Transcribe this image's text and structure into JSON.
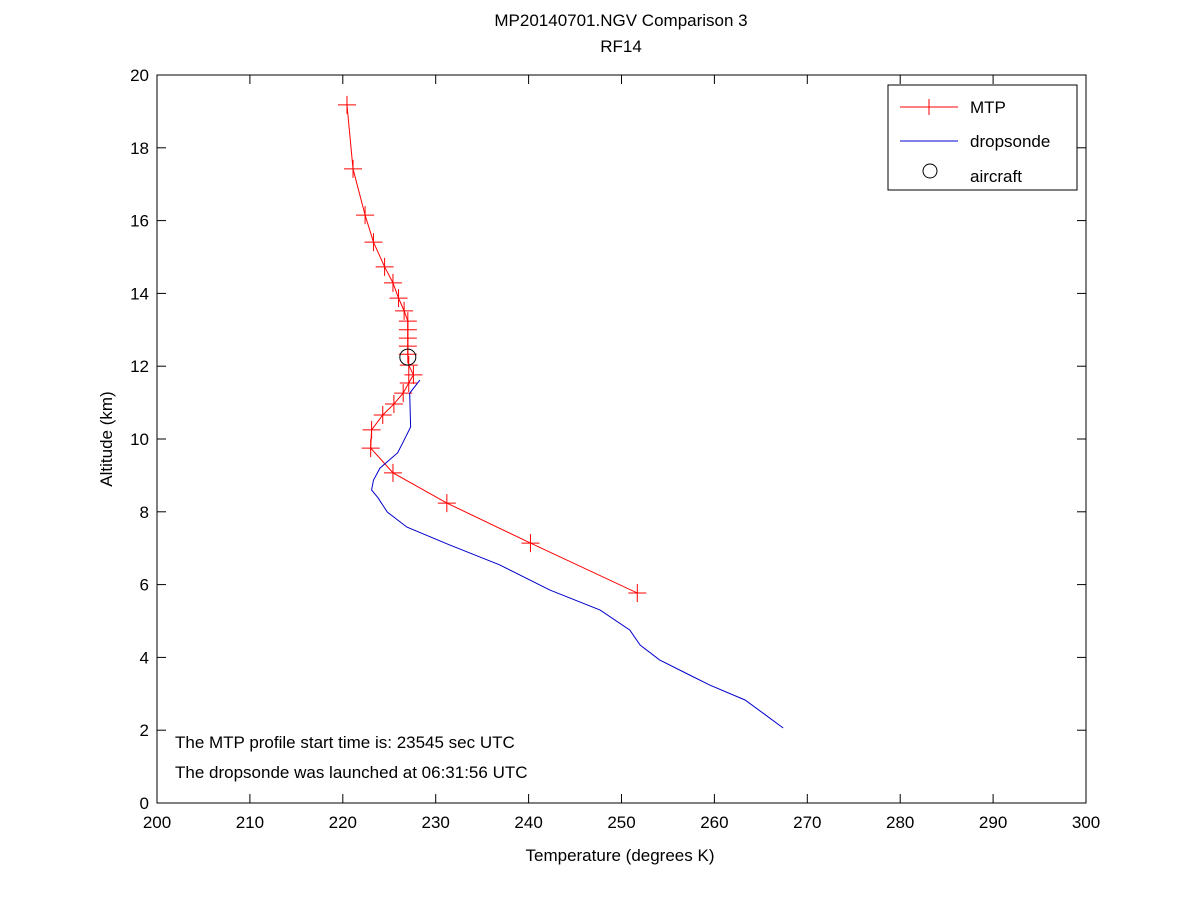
{
  "chart_data": {
    "type": "line",
    "title": "MP20140701.NGV Comparison 3",
    "subtitle": "RF14",
    "xlabel": "Temperature (degrees K)",
    "ylabel": "Altitude (km)",
    "xlim": [
      200,
      300
    ],
    "ylim": [
      0,
      20
    ],
    "xticks": [
      "200",
      "210",
      "220",
      "230",
      "240",
      "250",
      "260",
      "270",
      "280",
      "290",
      "300"
    ],
    "yticks": [
      "0",
      "2",
      "4",
      "6",
      "8",
      "10",
      "12",
      "14",
      "16",
      "18",
      "20"
    ],
    "grid": false,
    "legend_position": "top-right",
    "series": [
      {
        "name": "MTP",
        "color": "#ff0000",
        "marker": "+",
        "points": [
          [
            220.45,
            19.18
          ],
          [
            221.1,
            17.42
          ],
          [
            222.4,
            16.15
          ],
          [
            223.3,
            15.41
          ],
          [
            224.5,
            14.73
          ],
          [
            225.4,
            14.29
          ],
          [
            226.0,
            13.87
          ],
          [
            226.6,
            13.52
          ],
          [
            227.0,
            13.24
          ],
          [
            227.0,
            13.0
          ],
          [
            227.0,
            12.77
          ],
          [
            227.0,
            12.55
          ],
          [
            227.0,
            12.33
          ],
          [
            227.1,
            12.03
          ],
          [
            227.6,
            11.76
          ],
          [
            227.1,
            11.54
          ],
          [
            226.5,
            11.26
          ],
          [
            225.5,
            10.96
          ],
          [
            224.3,
            10.66
          ],
          [
            223.1,
            10.25
          ],
          [
            223.0,
            9.75
          ],
          [
            225.4,
            9.07
          ],
          [
            231.2,
            8.24
          ],
          [
            240.2,
            7.14
          ],
          [
            251.7,
            5.77
          ]
        ]
      },
      {
        "name": "dropsonde",
        "color": "#0000cc",
        "marker": "none",
        "points": [
          [
            228.3,
            11.62
          ],
          [
            227.2,
            11.26
          ],
          [
            227.3,
            10.33
          ],
          [
            226.5,
            9.92
          ],
          [
            225.9,
            9.62
          ],
          [
            224.0,
            9.2
          ],
          [
            223.3,
            8.87
          ],
          [
            223.1,
            8.6
          ],
          [
            223.8,
            8.38
          ],
          [
            224.8,
            7.99
          ],
          [
            226.9,
            7.58
          ],
          [
            231.5,
            7.09
          ],
          [
            236.9,
            6.54
          ],
          [
            242.3,
            5.85
          ],
          [
            247.7,
            5.3
          ],
          [
            250.9,
            4.75
          ],
          [
            252.0,
            4.34
          ],
          [
            254.1,
            3.93
          ],
          [
            257.3,
            3.52
          ],
          [
            259.5,
            3.24
          ],
          [
            263.3,
            2.83
          ],
          [
            265.5,
            2.42
          ],
          [
            267.4,
            2.06
          ]
        ]
      },
      {
        "name": "aircraft",
        "color": "#000000",
        "marker": "o",
        "points": [
          [
            227.0,
            12.25
          ]
        ]
      }
    ],
    "annotations": [
      "The MTP profile start time is: 23545 sec UTC",
      "The dropsonde was launched at 06:31:56 UTC"
    ]
  }
}
